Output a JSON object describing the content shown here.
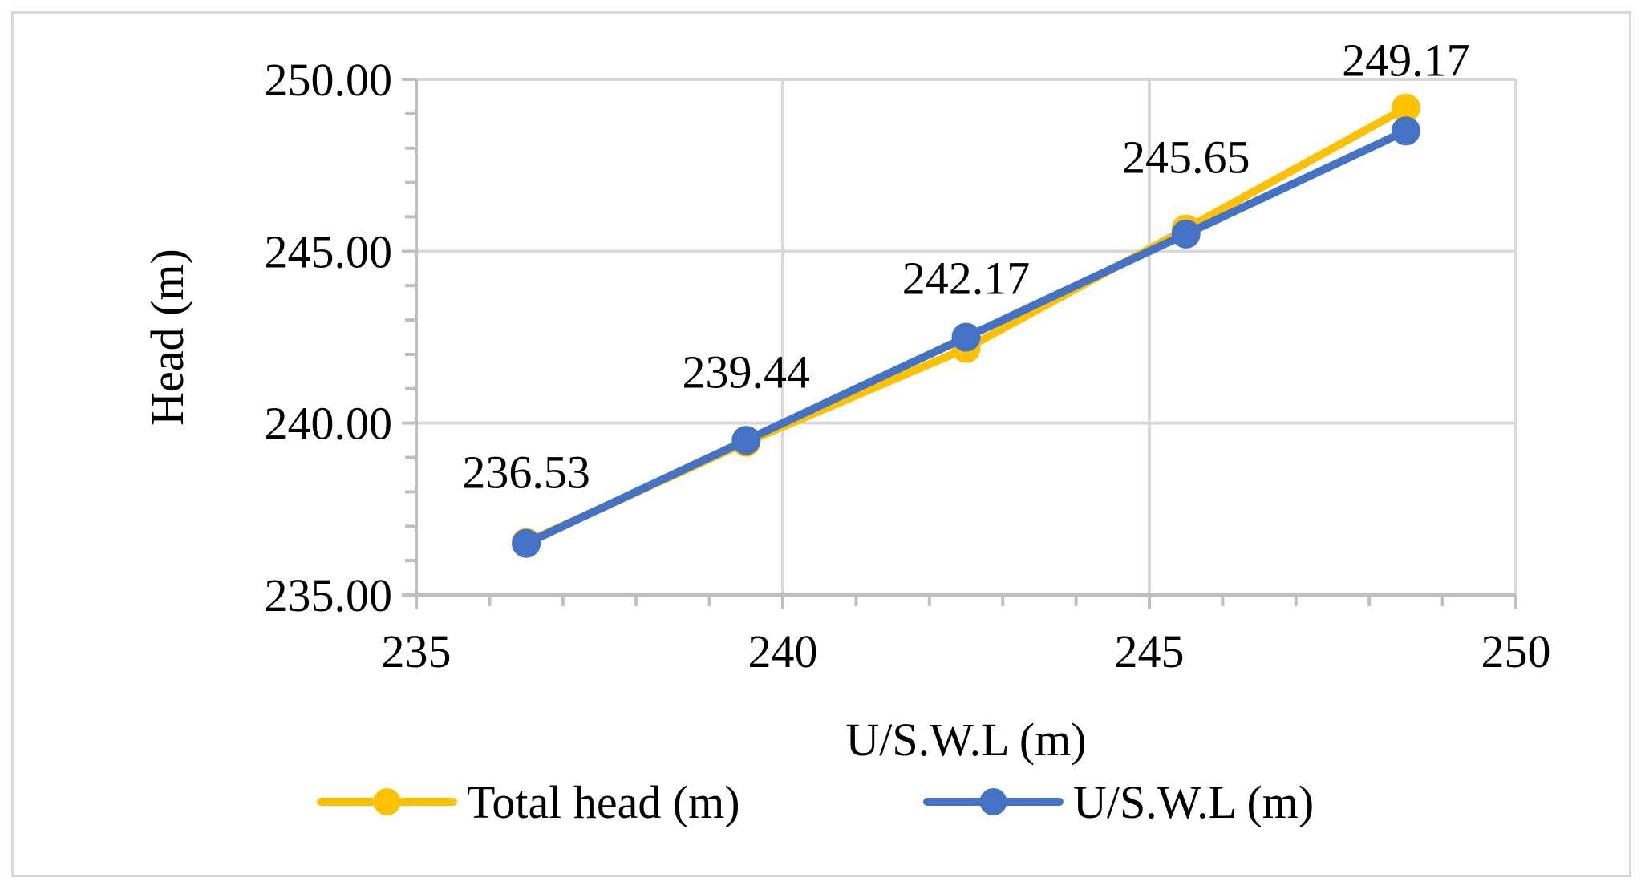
{
  "chart_data": {
    "type": "line",
    "title": "",
    "xlabel": "U/S.W.L (m)",
    "ylabel": "Head (m)",
    "xlim": [
      235,
      250
    ],
    "ylim": [
      235,
      250
    ],
    "x_ticks": [
      235,
      240,
      245,
      250
    ],
    "x_tick_labels": [
      "235",
      "240",
      "245",
      "250"
    ],
    "y_ticks": [
      235,
      240,
      245,
      250
    ],
    "y_tick_labels": [
      "235.00",
      "240.00",
      "245.00",
      "250.00"
    ],
    "grid": true,
    "legend_position": "bottom",
    "series": [
      {
        "name": "Total head (m)",
        "color": "#FFC000",
        "x": [
          236.5,
          239.5,
          242.5,
          245.5,
          248.5
        ],
        "y": [
          236.53,
          239.44,
          242.17,
          245.65,
          249.17
        ],
        "data_labels": [
          "236.53",
          "239.44",
          "242.17",
          "245.65",
          "249.17"
        ]
      },
      {
        "name": "U/S.W.L (m)",
        "color": "#4472C4",
        "x": [
          236.5,
          239.5,
          242.5,
          245.5,
          248.5
        ],
        "y": [
          236.5,
          239.5,
          242.5,
          245.5,
          248.5
        ]
      }
    ]
  }
}
